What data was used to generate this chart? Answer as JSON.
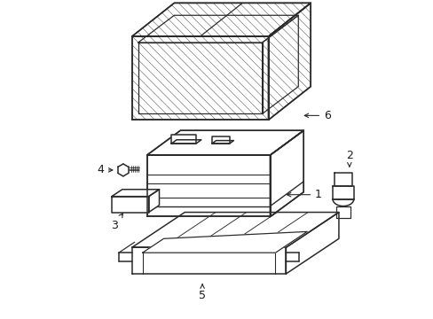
{
  "background_color": "#ffffff",
  "line_color": "#2a2a2a",
  "label_color": "#1a1a1a",
  "label_fontsize": 9,
  "fig_width": 4.89,
  "fig_height": 3.6,
  "dpi": 100
}
